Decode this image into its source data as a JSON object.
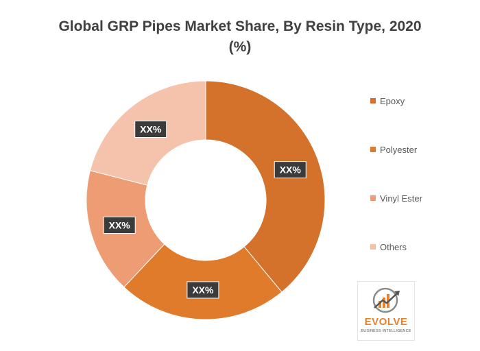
{
  "chart_data": {
    "type": "pie",
    "title_line1": "Global  GRP Pipes Market Share, By  Resin Type, 2020",
    "title_line2": "(%)",
    "donut": true,
    "categories": [
      "Epoxy",
      "Polyester",
      "Vinyl Ester",
      "Others"
    ],
    "values": [
      39,
      23,
      17,
      21
    ],
    "data_labels": [
      "XX%",
      "XX%",
      "XX%",
      "XX%"
    ],
    "colors": [
      "#d4712a",
      "#e07b2c",
      "#ee9c73",
      "#f5c2ab"
    ],
    "legend_position": "right"
  },
  "logo": {
    "name": "EVOLVE",
    "tagline": "BUSINESS INTELLIGENCE"
  }
}
